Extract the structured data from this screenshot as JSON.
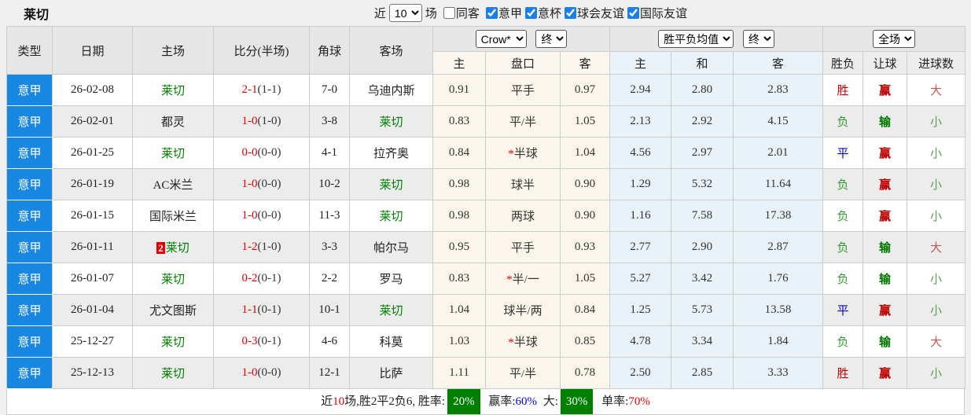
{
  "title": "莱切",
  "controls": {
    "recent_label_before": "近",
    "recent_value": "10",
    "recent_label_after": "场",
    "checkboxes": [
      {
        "label": "同客",
        "checked": false
      },
      {
        "label": "意甲",
        "checked": true
      },
      {
        "label": "意杯",
        "checked": true
      },
      {
        "label": "球会友谊",
        "checked": true
      },
      {
        "label": "国际友谊",
        "checked": true
      }
    ]
  },
  "table": {
    "headers": {
      "type": "类型",
      "date": "日期",
      "home": "主场",
      "score": "比分(半场)",
      "corners": "角球",
      "away": "客场",
      "asia_source": "Crow*",
      "asia_state": "终",
      "europe_source": "胜平负均值",
      "europe_state": "终",
      "scope": "全场",
      "sub": [
        "主",
        "盘口",
        "客",
        "主",
        "和",
        "客",
        "胜负",
        "让球",
        "进球数"
      ]
    },
    "rows": [
      {
        "league": "意甲",
        "date": "26-02-08",
        "home": "莱切",
        "home_is_focus": true,
        "home_badge": "",
        "score": "2-1",
        "half": "(1-1)",
        "corners": "7-0",
        "away": "乌迪内斯",
        "away_is_focus": false,
        "asia_home": "0.91",
        "handicap": "平手",
        "handicap_star": false,
        "asia_away": "0.97",
        "eu_home": "2.94",
        "eu_draw": "2.80",
        "eu_away": "2.83",
        "result": "胜",
        "result_type": "win",
        "spread": "赢",
        "spread_type": "win",
        "goals": "大",
        "goals_type": "big"
      },
      {
        "league": "意甲",
        "date": "26-02-01",
        "home": "都灵",
        "home_is_focus": false,
        "home_badge": "",
        "score": "1-0",
        "half": "(1-0)",
        "corners": "3-8",
        "away": "莱切",
        "away_is_focus": true,
        "asia_home": "0.83",
        "handicap": "平/半",
        "handicap_star": false,
        "asia_away": "1.05",
        "eu_home": "2.13",
        "eu_draw": "2.92",
        "eu_away": "4.15",
        "result": "负",
        "result_type": "loss",
        "spread": "输",
        "spread_type": "loss",
        "goals": "小",
        "goals_type": "small"
      },
      {
        "league": "意甲",
        "date": "26-01-25",
        "home": "莱切",
        "home_is_focus": true,
        "home_badge": "",
        "score": "0-0",
        "half": "(0-0)",
        "corners": "4-1",
        "away": "拉齐奥",
        "away_is_focus": false,
        "asia_home": "0.84",
        "handicap": "半球",
        "handicap_star": true,
        "asia_away": "1.04",
        "eu_home": "4.56",
        "eu_draw": "2.97",
        "eu_away": "2.01",
        "result": "平",
        "result_type": "draw",
        "spread": "赢",
        "spread_type": "win",
        "goals": "小",
        "goals_type": "small"
      },
      {
        "league": "意甲",
        "date": "26-01-19",
        "home": "AC米兰",
        "home_is_focus": false,
        "home_badge": "",
        "score": "1-0",
        "half": "(0-0)",
        "corners": "10-2",
        "away": "莱切",
        "away_is_focus": true,
        "asia_home": "0.98",
        "handicap": "球半",
        "handicap_star": false,
        "asia_away": "0.90",
        "eu_home": "1.29",
        "eu_draw": "5.32",
        "eu_away": "11.64",
        "result": "负",
        "result_type": "loss",
        "spread": "赢",
        "spread_type": "win",
        "goals": "小",
        "goals_type": "small"
      },
      {
        "league": "意甲",
        "date": "26-01-15",
        "home": "国际米兰",
        "home_is_focus": false,
        "home_badge": "",
        "score": "1-0",
        "half": "(0-0)",
        "corners": "11-3",
        "away": "莱切",
        "away_is_focus": true,
        "asia_home": "0.98",
        "handicap": "两球",
        "handicap_star": false,
        "asia_away": "0.90",
        "eu_home": "1.16",
        "eu_draw": "7.58",
        "eu_away": "17.38",
        "result": "负",
        "result_type": "loss",
        "spread": "赢",
        "spread_type": "win",
        "goals": "小",
        "goals_type": "small"
      },
      {
        "league": "意甲",
        "date": "26-01-11",
        "home": "莱切",
        "home_is_focus": true,
        "home_badge": "2",
        "score": "1-2",
        "half": "(1-0)",
        "corners": "3-3",
        "away": "帕尔马",
        "away_is_focus": false,
        "asia_home": "0.95",
        "handicap": "平手",
        "handicap_star": false,
        "asia_away": "0.93",
        "eu_home": "2.77",
        "eu_draw": "2.90",
        "eu_away": "2.87",
        "result": "负",
        "result_type": "loss",
        "spread": "输",
        "spread_type": "loss",
        "goals": "大",
        "goals_type": "big"
      },
      {
        "league": "意甲",
        "date": "26-01-07",
        "home": "莱切",
        "home_is_focus": true,
        "home_badge": "",
        "score": "0-2",
        "half": "(0-1)",
        "corners": "2-2",
        "away": "罗马",
        "away_is_focus": false,
        "asia_home": "0.83",
        "handicap": "半/一",
        "handicap_star": true,
        "asia_away": "1.05",
        "eu_home": "5.27",
        "eu_draw": "3.42",
        "eu_away": "1.76",
        "result": "负",
        "result_type": "loss",
        "spread": "输",
        "spread_type": "loss",
        "goals": "小",
        "goals_type": "small"
      },
      {
        "league": "意甲",
        "date": "26-01-04",
        "home": "尤文图斯",
        "home_is_focus": false,
        "home_badge": "",
        "score": "1-1",
        "half": "(0-1)",
        "corners": "10-1",
        "away": "莱切",
        "away_is_focus": true,
        "asia_home": "1.04",
        "handicap": "球半/两",
        "handicap_star": false,
        "asia_away": "0.84",
        "eu_home": "1.25",
        "eu_draw": "5.73",
        "eu_away": "13.58",
        "result": "平",
        "result_type": "draw",
        "spread": "赢",
        "spread_type": "win",
        "goals": "小",
        "goals_type": "small"
      },
      {
        "league": "意甲",
        "date": "25-12-27",
        "home": "莱切",
        "home_is_focus": true,
        "home_badge": "",
        "score": "0-3",
        "half": "(0-1)",
        "corners": "4-6",
        "away": "科莫",
        "away_is_focus": false,
        "asia_home": "1.03",
        "handicap": "半球",
        "handicap_star": true,
        "asia_away": "0.85",
        "eu_home": "4.78",
        "eu_draw": "3.34",
        "eu_away": "1.84",
        "result": "负",
        "result_type": "loss",
        "spread": "输",
        "spread_type": "loss",
        "goals": "大",
        "goals_type": "big"
      },
      {
        "league": "意甲",
        "date": "25-12-13",
        "home": "莱切",
        "home_is_focus": true,
        "home_badge": "",
        "score": "1-0",
        "half": "(0-0)",
        "corners": "12-1",
        "away": "比萨",
        "away_is_focus": false,
        "asia_home": "1.11",
        "handicap": "平/半",
        "handicap_star": false,
        "asia_away": "0.78",
        "eu_home": "2.50",
        "eu_draw": "2.85",
        "eu_away": "3.33",
        "result": "胜",
        "result_type": "win",
        "spread": "赢",
        "spread_type": "win",
        "goals": "小",
        "goals_type": "small"
      }
    ]
  },
  "summary": {
    "seg1": "近",
    "seg2": "10",
    "seg3": "场,胜2平2负6, 胜率:",
    "win_rate": "20%",
    "seg4": "赢率:",
    "handicap_rate": "60%",
    "seg5": "大:",
    "big_rate": "30%",
    "seg6": "单率:",
    "single_rate": "70%"
  },
  "colors": {
    "league_badge_blue": "#1787e1",
    "focus_team_green": "#008000",
    "score_red": "#e60000",
    "win_red": "#cc0000",
    "loss_green": "#339933",
    "draw_blue": "#0000cc",
    "rate_badge_green": "#008000",
    "rate_blue": "#0000ee",
    "rate_red": "#e60000"
  }
}
